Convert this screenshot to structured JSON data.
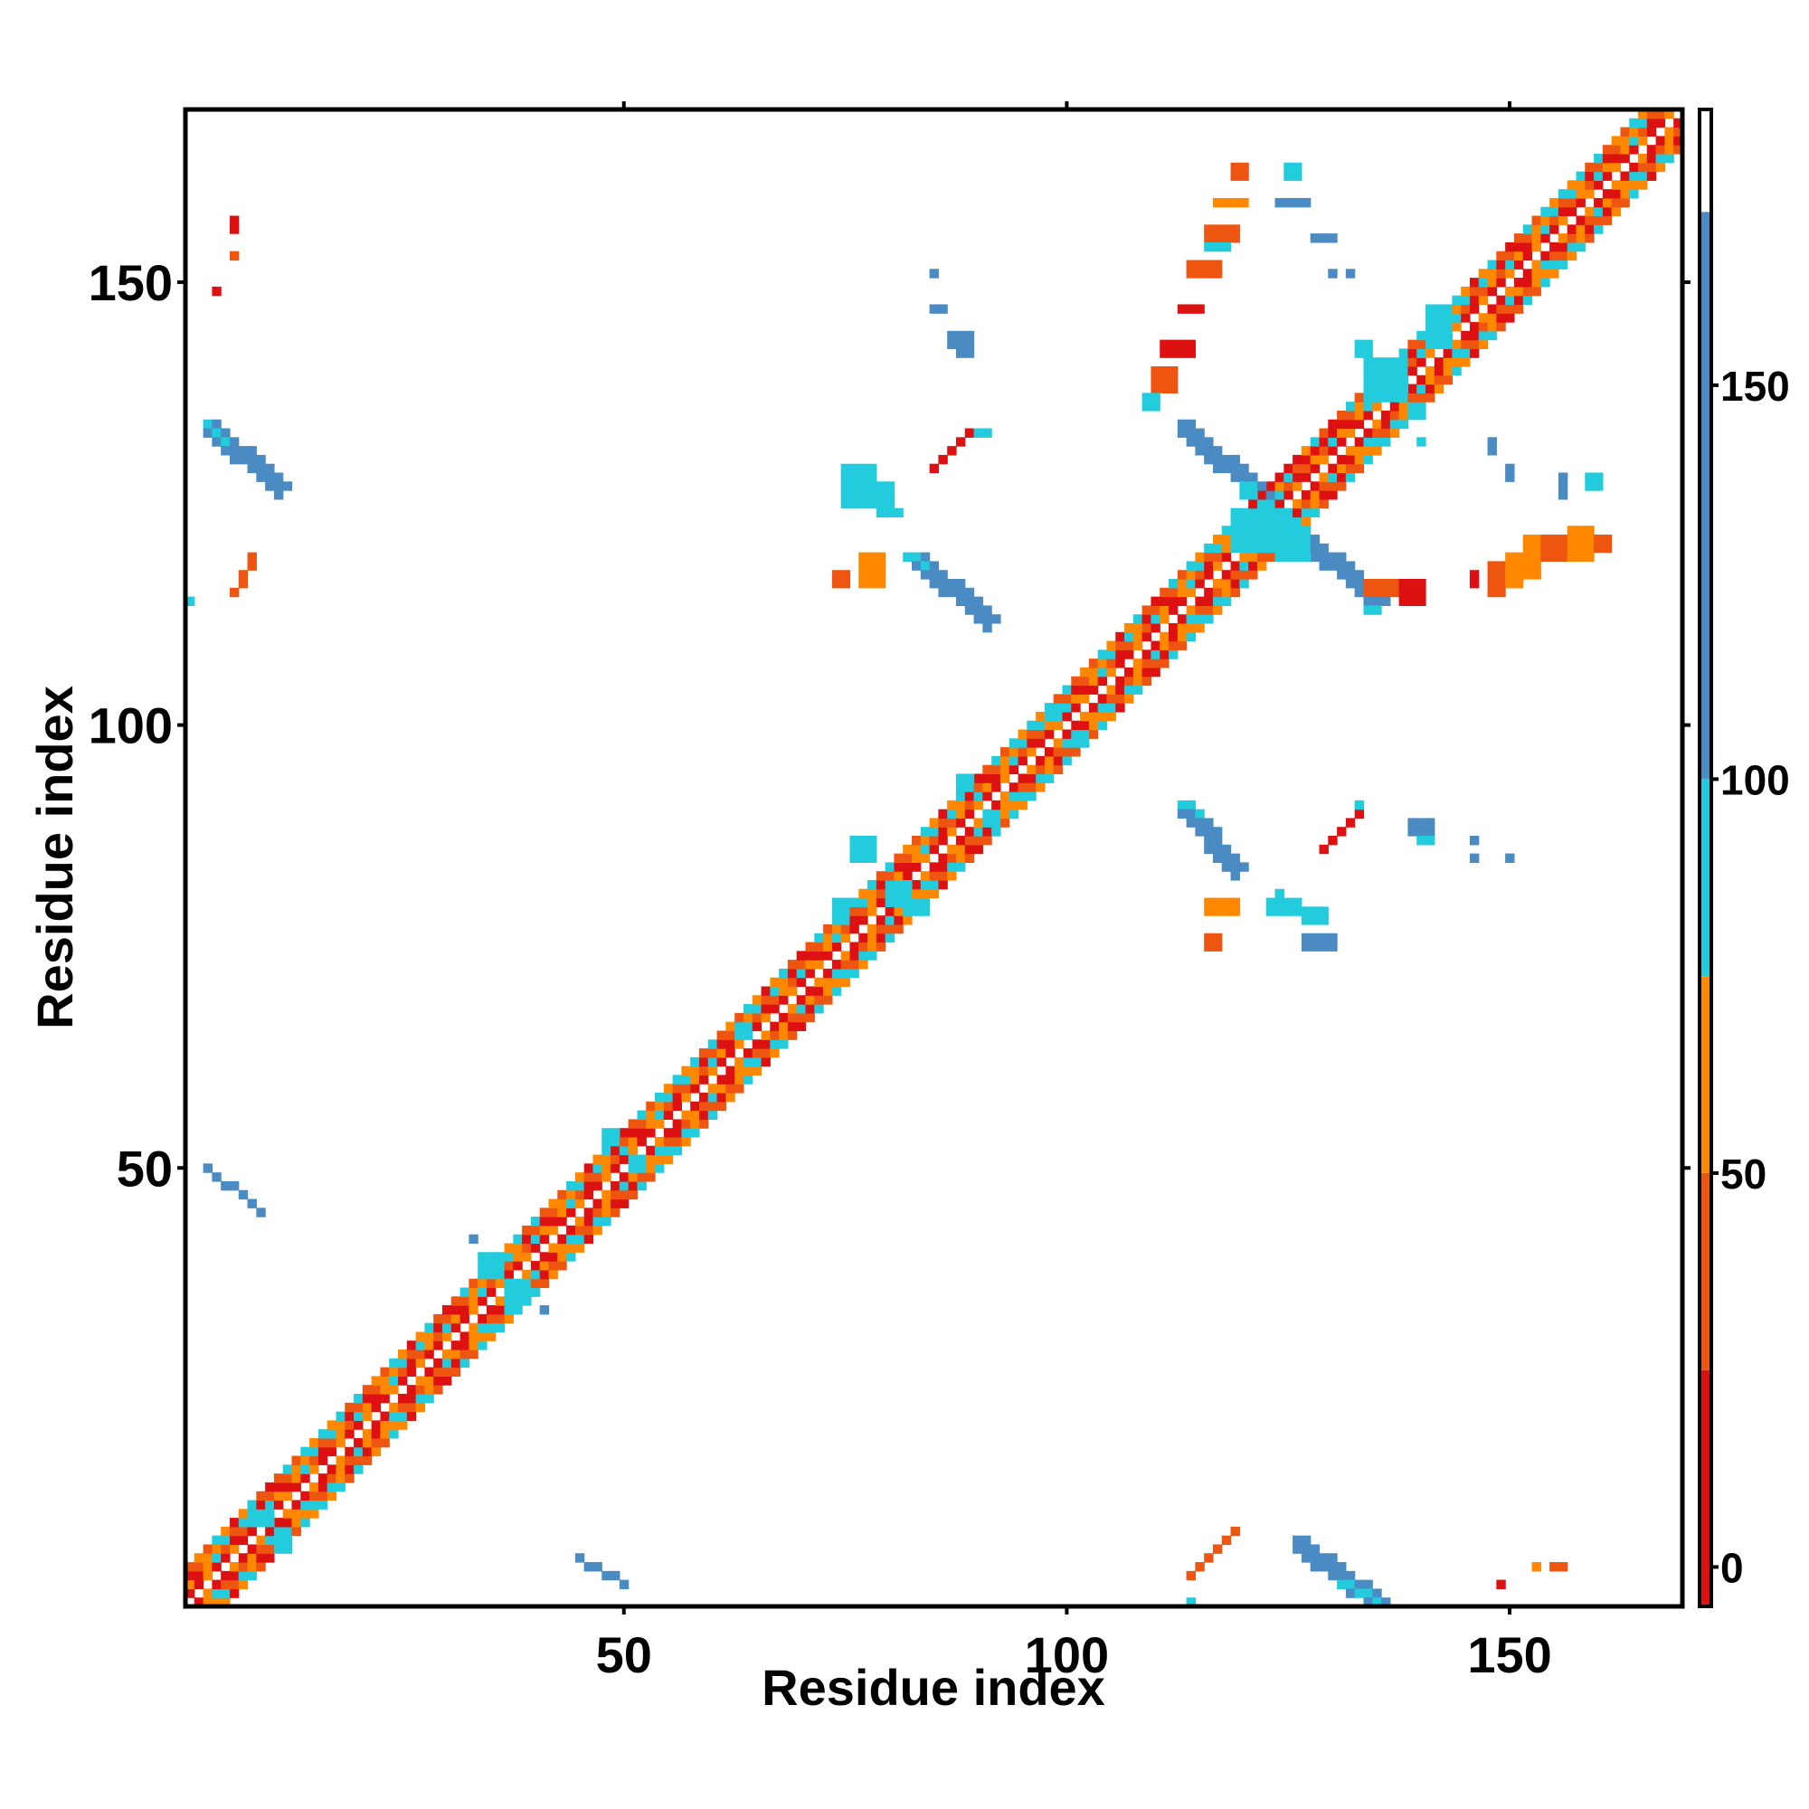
{
  "chart_data": {
    "type": "heatmap",
    "description_note": "",
    "xlabel": "Residue index",
    "ylabel": "Residue index",
    "xlim": [
      0.5,
      169.5
    ],
    "ylim": [
      0.5,
      169.5
    ],
    "x_ticks": [
      50,
      100,
      150
    ],
    "y_ticks": [
      50,
      100,
      150
    ],
    "colorbar": {
      "ticks": [
        0,
        50,
        100,
        150
      ],
      "range": [
        -5,
        185
      ],
      "bins": [
        {
          "from": -5,
          "to": 25,
          "color": "#dd1111"
        },
        {
          "from": 25,
          "to": 50,
          "color": "#ee5511"
        },
        {
          "from": 50,
          "to": 75,
          "color": "#ff8800"
        },
        {
          "from": 75,
          "to": 100,
          "color": "#22ccdd"
        },
        {
          "from": 100,
          "to": 172,
          "color": "#4a8bc4"
        },
        {
          "from": 172,
          "to": 185,
          "color": "#ffffff"
        }
      ]
    },
    "colors": {
      "red": "#dd1111",
      "redorange": "#ee5511",
      "orange": "#ff8800",
      "cyan": "#22ccdd",
      "blue": "#4a8bc4"
    },
    "diagonal": {
      "from": 1,
      "to": 169,
      "palette": [
        "red",
        "redorange",
        "orange",
        "redorange",
        "cyan",
        "orange",
        "red",
        "orange",
        "cyan",
        "redorange"
      ]
    },
    "bands": [
      {
        "x0": 3,
        "y0": 134,
        "x1": 11,
        "y1": 127,
        "width": 2,
        "color": "blue"
      },
      {
        "x0": 3,
        "y0": 134,
        "x1": 5,
        "y1": 132,
        "width": 1,
        "color": "cyan"
      },
      {
        "x0": 3,
        "y0": 50,
        "x1": 9,
        "y1": 45,
        "width": 1,
        "color": "blue"
      },
      {
        "x0": 45,
        "y0": 6,
        "x1": 50,
        "y1": 3,
        "width": 1,
        "color": "blue"
      },
      {
        "x0": 126,
        "y0": 8,
        "x1": 135,
        "y1": 1,
        "width": 2,
        "color": "blue"
      },
      {
        "x0": 131,
        "y0": 3,
        "x1": 135,
        "y1": 1,
        "width": 1,
        "color": "cyan"
      },
      {
        "x0": 113,
        "y0": 134,
        "x1": 122,
        "y1": 126,
        "width": 2,
        "color": "blue"
      },
      {
        "x0": 120,
        "y0": 127,
        "x1": 122,
        "y1": 125,
        "width": 2,
        "color": "cyan"
      },
      {
        "x0": 125,
        "y0": 123,
        "x1": 135,
        "y1": 114,
        "width": 2,
        "color": "blue"
      },
      {
        "x0": 124,
        "y0": 124,
        "x1": 126,
        "y1": 122,
        "width": 2,
        "color": "cyan"
      },
      {
        "x0": 83,
        "y0": 119,
        "x1": 91,
        "y1": 112,
        "width": 2,
        "color": "blue"
      },
      {
        "x0": 82,
        "y0": 119,
        "x1": 84,
        "y1": 118,
        "width": 1,
        "color": "cyan"
      },
      {
        "x0": 113,
        "y0": 91,
        "x1": 119,
        "y1": 84,
        "width": 2,
        "color": "blue"
      },
      {
        "x0": 113,
        "y0": 91,
        "x1": 115,
        "y1": 90,
        "width": 1,
        "color": "cyan"
      },
      {
        "x0": 6,
        "y0": 115,
        "x1": 8,
        "y1": 119,
        "width": 1,
        "color": "redorange"
      },
      {
        "x0": 85,
        "y0": 129,
        "x1": 89,
        "y1": 133,
        "width": 1,
        "color": "red"
      },
      {
        "x0": 129,
        "y0": 86,
        "x1": 133,
        "y1": 90,
        "width": 1,
        "color": "red"
      },
      {
        "x0": 114,
        "y0": 4,
        "x1": 119,
        "y1": 9,
        "width": 1,
        "color": "redorange"
      },
      {
        "x0": 121,
        "y0": 125,
        "x1": 131,
        "y1": 134,
        "width": 1,
        "color": "red"
      }
    ],
    "blocks": [
      {
        "x0": 6,
        "y0": 156,
        "x1": 6,
        "y1": 157,
        "color": "red"
      },
      {
        "x0": 6,
        "y0": 153,
        "x1": 6,
        "y1": 153,
        "color": "redorange"
      },
      {
        "x0": 4,
        "y0": 149,
        "x1": 4,
        "y1": 149,
        "color": "red"
      },
      {
        "x0": 1,
        "y0": 114,
        "x1": 1,
        "y1": 114,
        "color": "cyan"
      },
      {
        "x0": 74,
        "y0": 116,
        "x1": 75,
        "y1": 117,
        "color": "redorange"
      },
      {
        "x0": 77,
        "y0": 116,
        "x1": 79,
        "y1": 119,
        "color": "orange"
      },
      {
        "x0": 75,
        "y0": 125,
        "x1": 78,
        "y1": 129,
        "color": "cyan"
      },
      {
        "x0": 79,
        "y0": 124,
        "x1": 80,
        "y1": 127,
        "color": "cyan"
      },
      {
        "x0": 81,
        "y0": 124,
        "x1": 81,
        "y1": 124,
        "color": "cyan"
      },
      {
        "x0": 85,
        "y0": 151,
        "x1": 85,
        "y1": 151,
        "color": "blue"
      },
      {
        "x0": 85,
        "y0": 147,
        "x1": 86,
        "y1": 147,
        "color": "blue"
      },
      {
        "x0": 87,
        "y0": 143,
        "x1": 89,
        "y1": 144,
        "color": "blue"
      },
      {
        "x0": 88,
        "y0": 142,
        "x1": 89,
        "y1": 142,
        "color": "blue"
      },
      {
        "x0": 90,
        "y0": 133,
        "x1": 91,
        "y1": 133,
        "color": "cyan"
      },
      {
        "x0": 119,
        "y0": 162,
        "x1": 120,
        "y1": 163,
        "color": "redorange"
      },
      {
        "x0": 117,
        "y0": 159,
        "x1": 120,
        "y1": 159,
        "color": "orange"
      },
      {
        "x0": 116,
        "y0": 155,
        "x1": 119,
        "y1": 156,
        "color": "redorange"
      },
      {
        "x0": 116,
        "y0": 154,
        "x1": 118,
        "y1": 154,
        "color": "cyan"
      },
      {
        "x0": 114,
        "y0": 151,
        "x1": 117,
        "y1": 152,
        "color": "redorange"
      },
      {
        "x0": 113,
        "y0": 147,
        "x1": 115,
        "y1": 147,
        "color": "red"
      },
      {
        "x0": 111,
        "y0": 142,
        "x1": 114,
        "y1": 143,
        "color": "red"
      },
      {
        "x0": 110,
        "y0": 138,
        "x1": 112,
        "y1": 140,
        "color": "redorange"
      },
      {
        "x0": 109,
        "y0": 136,
        "x1": 110,
        "y1": 137,
        "color": "cyan"
      },
      {
        "x0": 125,
        "y0": 162,
        "x1": 126,
        "y1": 163,
        "color": "cyan"
      },
      {
        "x0": 124,
        "y0": 159,
        "x1": 127,
        "y1": 159,
        "color": "blue"
      },
      {
        "x0": 128,
        "y0": 155,
        "x1": 130,
        "y1": 155,
        "color": "blue"
      },
      {
        "x0": 130,
        "y0": 151,
        "x1": 130,
        "y1": 151,
        "color": "blue"
      },
      {
        "x0": 132,
        "y0": 151,
        "x1": 132,
        "y1": 151,
        "color": "blue"
      },
      {
        "x0": 133,
        "y0": 142,
        "x1": 134,
        "y1": 143,
        "color": "cyan"
      },
      {
        "x0": 134,
        "y0": 137,
        "x1": 138,
        "y1": 141,
        "color": "cyan"
      },
      {
        "x0": 139,
        "y0": 135,
        "x1": 140,
        "y1": 136,
        "color": "cyan"
      },
      {
        "x0": 140,
        "y0": 132,
        "x1": 140,
        "y1": 132,
        "color": "cyan"
      },
      {
        "x0": 134,
        "y0": 115,
        "x1": 137,
        "y1": 116,
        "color": "redorange"
      },
      {
        "x0": 138,
        "y0": 114,
        "x1": 140,
        "y1": 116,
        "color": "red"
      },
      {
        "x0": 134,
        "y0": 113,
        "x1": 135,
        "y1": 113,
        "color": "cyan"
      },
      {
        "x0": 146,
        "y0": 116,
        "x1": 146,
        "y1": 117,
        "color": "red"
      },
      {
        "x0": 148,
        "y0": 115,
        "x1": 149,
        "y1": 118,
        "color": "redorange"
      },
      {
        "x0": 150,
        "y0": 116,
        "x1": 151,
        "y1": 119,
        "color": "orange"
      },
      {
        "x0": 152,
        "y0": 117,
        "x1": 153,
        "y1": 121,
        "color": "orange"
      },
      {
        "x0": 154,
        "y0": 119,
        "x1": 156,
        "y1": 121,
        "color": "redorange"
      },
      {
        "x0": 157,
        "y0": 119,
        "x1": 159,
        "y1": 122,
        "color": "orange"
      },
      {
        "x0": 160,
        "y0": 120,
        "x1": 161,
        "y1": 121,
        "color": "redorange"
      },
      {
        "x0": 148,
        "y0": 131,
        "x1": 148,
        "y1": 132,
        "color": "blue"
      },
      {
        "x0": 150,
        "y0": 128,
        "x1": 150,
        "y1": 129,
        "color": "blue"
      },
      {
        "x0": 156,
        "y0": 126,
        "x1": 156,
        "y1": 128,
        "color": "blue"
      },
      {
        "x0": 159,
        "y0": 127,
        "x1": 160,
        "y1": 128,
        "color": "cyan"
      },
      {
        "x0": 116,
        "y0": 79,
        "x1": 119,
        "y1": 80,
        "color": "orange"
      },
      {
        "x0": 116,
        "y0": 75,
        "x1": 117,
        "y1": 76,
        "color": "redorange"
      },
      {
        "x0": 124,
        "y0": 81,
        "x1": 124,
        "y1": 81,
        "color": "cyan"
      },
      {
        "x0": 123,
        "y0": 79,
        "x1": 126,
        "y1": 80,
        "color": "cyan"
      },
      {
        "x0": 127,
        "y0": 78,
        "x1": 129,
        "y1": 79,
        "color": "cyan"
      },
      {
        "x0": 127,
        "y0": 75,
        "x1": 130,
        "y1": 76,
        "color": "blue"
      },
      {
        "x0": 133,
        "y0": 91,
        "x1": 133,
        "y1": 91,
        "color": "cyan"
      },
      {
        "x0": 139,
        "y0": 88,
        "x1": 141,
        "y1": 89,
        "color": "blue"
      },
      {
        "x0": 140,
        "y0": 87,
        "x1": 141,
        "y1": 87,
        "color": "cyan"
      },
      {
        "x0": 146,
        "y0": 87,
        "x1": 146,
        "y1": 87,
        "color": "blue"
      },
      {
        "x0": 146,
        "y0": 85,
        "x1": 146,
        "y1": 85,
        "color": "blue"
      },
      {
        "x0": 150,
        "y0": 85,
        "x1": 150,
        "y1": 85,
        "color": "blue"
      },
      {
        "x0": 149,
        "y0": 3,
        "x1": 149,
        "y1": 3,
        "color": "red"
      },
      {
        "x0": 153,
        "y0": 5,
        "x1": 153,
        "y1": 5,
        "color": "orange"
      },
      {
        "x0": 155,
        "y0": 5,
        "x1": 156,
        "y1": 5,
        "color": "redorange"
      },
      {
        "x0": 114,
        "y0": 1,
        "x1": 114,
        "y1": 1,
        "color": "cyan"
      },
      {
        "x0": 33,
        "y0": 42,
        "x1": 33,
        "y1": 42,
        "color": "blue"
      },
      {
        "x0": 41,
        "y0": 34,
        "x1": 41,
        "y1": 34,
        "color": "blue"
      },
      {
        "x0": 34,
        "y0": 38,
        "x1": 36,
        "y1": 40,
        "color": "cyan"
      },
      {
        "x0": 37,
        "y0": 35,
        "x1": 39,
        "y1": 37,
        "color": "cyan"
      },
      {
        "x0": 76,
        "y0": 85,
        "x1": 78,
        "y1": 87,
        "color": "cyan"
      },
      {
        "x0": 80,
        "y0": 80,
        "x1": 82,
        "y1": 82,
        "color": "cyan"
      },
      {
        "x0": 82,
        "y0": 79,
        "x1": 84,
        "y1": 80,
        "color": "cyan"
      },
      {
        "x0": 74,
        "y0": 79,
        "x1": 75,
        "y1": 80,
        "color": "cyan"
      },
      {
        "x0": 88,
        "y0": 93,
        "x1": 89,
        "y1": 94,
        "color": "cyan"
      },
      {
        "x0": 91,
        "y0": 89,
        "x1": 92,
        "y1": 90,
        "color": "cyan"
      },
      {
        "x0": 119,
        "y0": 120,
        "x1": 123,
        "y1": 124,
        "color": "cyan"
      },
      {
        "x0": 124,
        "y0": 119,
        "x1": 127,
        "y1": 121,
        "color": "cyan"
      },
      {
        "x0": 141,
        "y0": 143,
        "x1": 143,
        "y1": 147,
        "color": "cyan"
      },
      {
        "x0": 48,
        "y0": 53,
        "x1": 49,
        "y1": 54,
        "color": "cyan"
      },
      {
        "x0": 51,
        "y0": 50,
        "x1": 52,
        "y1": 51,
        "color": "cyan"
      },
      {
        "x0": 63,
        "y0": 65,
        "x1": 64,
        "y1": 66,
        "color": "cyan"
      },
      {
        "x0": 98,
        "y0": 101,
        "x1": 99,
        "y1": 102,
        "color": "cyan"
      },
      {
        "x0": 101,
        "y0": 98,
        "x1": 102,
        "y1": 99,
        "color": "cyan"
      },
      {
        "x0": 8,
        "y0": 10,
        "x1": 10,
        "y1": 11,
        "color": "cyan"
      },
      {
        "x0": 11,
        "y0": 7,
        "x1": 12,
        "y1": 9,
        "color": "cyan"
      }
    ]
  }
}
